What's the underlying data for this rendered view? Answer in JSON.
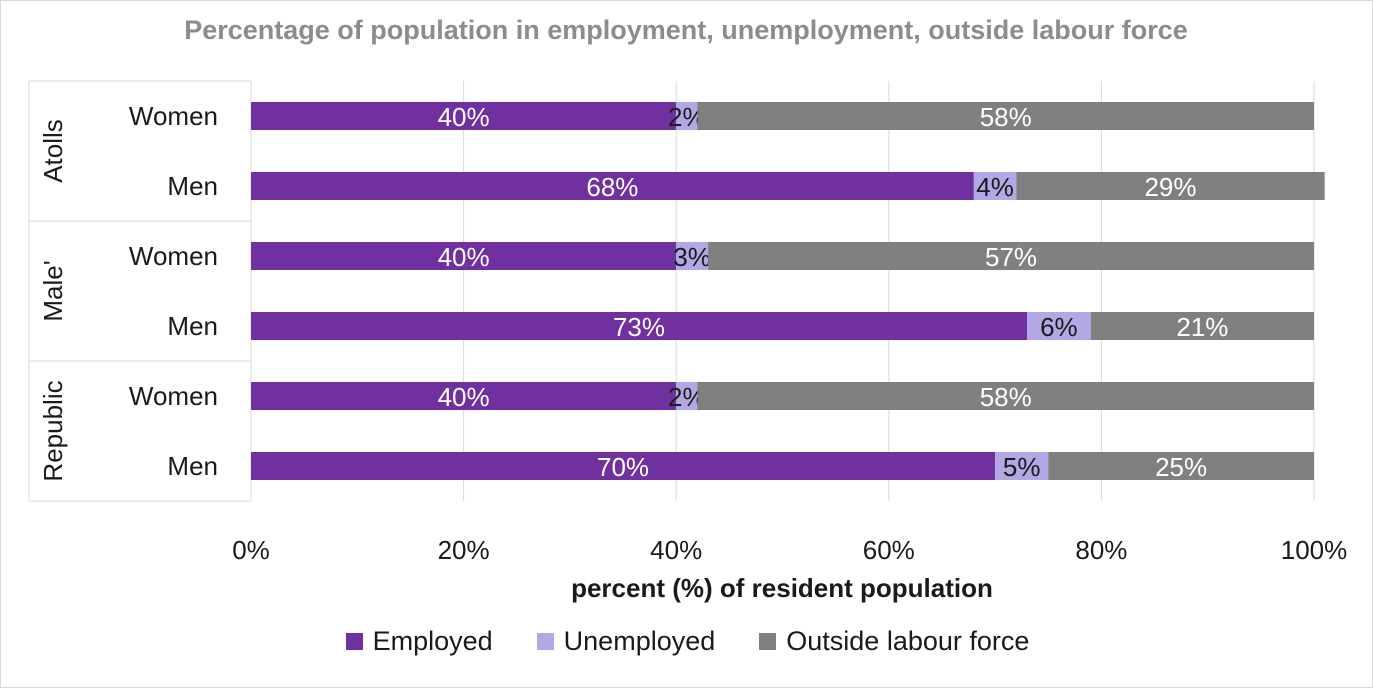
{
  "chart_data": {
    "type": "bar",
    "orientation": "horizontal",
    "stacked": true,
    "title": "Percentage of population in employment, unemployment, outside labour force",
    "xlabel": "percent (%) of resident population",
    "ylabel": "",
    "xlim": [
      0,
      100
    ],
    "x_ticks": [
      "0%",
      "20%",
      "40%",
      "60%",
      "80%",
      "100%"
    ],
    "grid": true,
    "legend_position": "bottom",
    "groups": [
      {
        "name": "Atolls",
        "categories": [
          "Women",
          "Men"
        ]
      },
      {
        "name": "Male'",
        "categories": [
          "Women",
          "Men"
        ]
      },
      {
        "name": "Republic",
        "categories": [
          "Women",
          "Men"
        ]
      }
    ],
    "series": [
      {
        "name": "Employed",
        "color": "#7030a0",
        "values": [
          40,
          68,
          40,
          73,
          40,
          70
        ],
        "labels": [
          "40%",
          "68%",
          "40%",
          "73%",
          "40%",
          "70%"
        ]
      },
      {
        "name": "Unemployed",
        "color": "#b4a7e5",
        "values": [
          2,
          4,
          3,
          6,
          2,
          5
        ],
        "labels": [
          "2%",
          "4%",
          "3%",
          "6%",
          "2%",
          "5%"
        ]
      },
      {
        "name": "Outside labour force",
        "color": "#808080",
        "values": [
          58,
          29,
          57,
          21,
          58,
          25
        ],
        "labels": [
          "58%",
          "29%",
          "57%",
          "21%",
          "58%",
          "25%"
        ]
      }
    ]
  }
}
